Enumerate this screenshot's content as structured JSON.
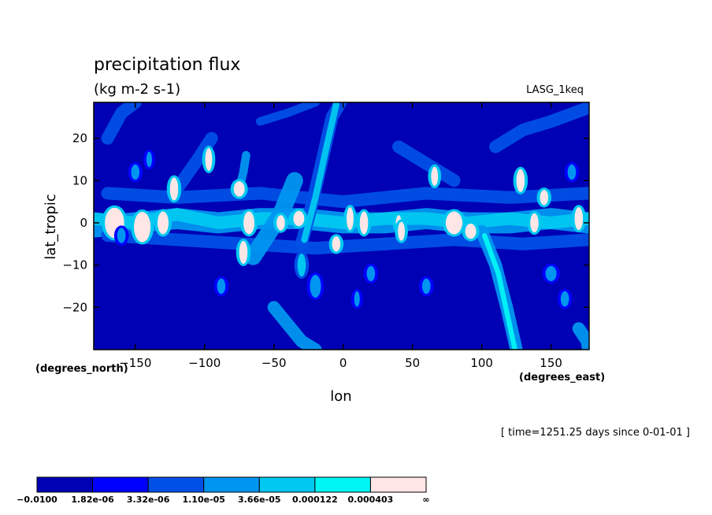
{
  "chart_data": {
    "type": "heatmap",
    "title": "precipitation flux",
    "units": "(kg m-2 s-1)",
    "dataset": "LASG_1keq",
    "xlabel": "lon",
    "ylabel": "lat_tropic",
    "x_units": "(degrees_east)",
    "y_units": "(degrees_north)",
    "time_label": "[ time=1251.25 days since 0-01-01 ]",
    "xlim": [
      -180,
      177.5
    ],
    "ylim": [
      -30,
      28.5
    ],
    "x_ticks": [
      -150,
      -100,
      -50,
      0,
      50,
      100,
      150
    ],
    "y_ticks": [
      -20,
      -10,
      0,
      10,
      20
    ],
    "x_tick_labels": [
      "−150",
      "−100",
      "−50",
      "0",
      "50",
      "100",
      "150"
    ],
    "y_tick_labels": [
      "−20",
      "−10",
      "0",
      "10",
      "20"
    ],
    "levels": [
      "−0.0100",
      "1.82e-06",
      "3.32e-06",
      "1.10e-05",
      "3.66e-05",
      "0.000122",
      "0.000403",
      "∞"
    ],
    "colors": [
      "#0000b4",
      "#0000ff",
      "#0050e6",
      "#0096f0",
      "#00c8f0",
      "#00f5f5",
      "#ffe6e6"
    ],
    "features": [
      {
        "type": "band",
        "pts": [
          [
            -180,
            -1
          ],
          [
            -150,
            0
          ],
          [
            -120,
            1
          ],
          [
            -90,
            0
          ],
          [
            -60,
            1
          ],
          [
            -30,
            1
          ],
          [
            0,
            0
          ],
          [
            30,
            0
          ],
          [
            60,
            1
          ],
          [
            90,
            0
          ],
          [
            120,
            0
          ],
          [
            150,
            1
          ],
          [
            177,
            0
          ]
        ],
        "w": 5,
        "level": 3
      },
      {
        "type": "band",
        "pts": [
          [
            -180,
            1
          ],
          [
            -150,
            0
          ],
          [
            -120,
            2
          ],
          [
            -90,
            0
          ],
          [
            -60,
            1
          ],
          [
            -30,
            1
          ],
          [
            0,
            0
          ],
          [
            30,
            1
          ],
          [
            60,
            1
          ],
          [
            90,
            0
          ],
          [
            120,
            1
          ],
          [
            150,
            0
          ],
          [
            177,
            1
          ]
        ],
        "w": 3,
        "level": 4
      },
      {
        "type": "band",
        "pts": [
          [
            -170,
            -3
          ],
          [
            -120,
            -4
          ],
          [
            -70,
            -5
          ],
          [
            -20,
            -6
          ],
          [
            30,
            -5
          ],
          [
            80,
            -4
          ],
          [
            130,
            -5
          ],
          [
            177,
            -4
          ]
        ],
        "w": 3,
        "level": 2
      },
      {
        "type": "band",
        "pts": [
          [
            -170,
            7
          ],
          [
            -120,
            6
          ],
          [
            -60,
            7
          ],
          [
            0,
            5
          ],
          [
            60,
            7
          ],
          [
            120,
            6
          ],
          [
            177,
            7
          ]
        ],
        "w": 3,
        "level": 2
      },
      {
        "type": "band",
        "pts": [
          [
            -65,
            -8
          ],
          [
            -55,
            -3
          ],
          [
            -45,
            2
          ],
          [
            -40,
            6
          ],
          [
            -35,
            10
          ]
        ],
        "w": 4,
        "level": 3
      },
      {
        "type": "band",
        "pts": [
          [
            -30,
            -5
          ],
          [
            -22,
            5
          ],
          [
            -15,
            15
          ],
          [
            -8,
            25
          ],
          [
            -2,
            28.5
          ]
        ],
        "w": 3,
        "level": 2
      },
      {
        "type": "band",
        "pts": [
          [
            -28,
            -4
          ],
          [
            -20,
            6
          ],
          [
            -12,
            18
          ],
          [
            -5,
            28
          ]
        ],
        "w": 1.5,
        "level": 4
      },
      {
        "type": "band",
        "pts": [
          [
            100,
            -2
          ],
          [
            110,
            -10
          ],
          [
            118,
            -20
          ],
          [
            125,
            -30
          ]
        ],
        "w": 3,
        "level": 3
      },
      {
        "type": "band",
        "pts": [
          [
            102,
            -3
          ],
          [
            112,
            -12
          ],
          [
            120,
            -24
          ],
          [
            124,
            -30
          ]
        ],
        "w": 1.2,
        "level": 5
      },
      {
        "type": "band",
        "pts": [
          [
            -120,
            8
          ],
          [
            -105,
            15
          ],
          [
            -95,
            20
          ]
        ],
        "w": 3,
        "level": 2
      },
      {
        "type": "band",
        "pts": [
          [
            -50,
            -20
          ],
          [
            -40,
            -24
          ],
          [
            -30,
            -28
          ],
          [
            -20,
            -30
          ]
        ],
        "w": 3,
        "level": 3
      },
      {
        "type": "band",
        "pts": [
          [
            110,
            18
          ],
          [
            130,
            22
          ],
          [
            150,
            24
          ],
          [
            175,
            27
          ]
        ],
        "w": 3,
        "level": 2
      },
      {
        "type": "band",
        "pts": [
          [
            -170,
            20
          ],
          [
            -160,
            26
          ],
          [
            -150,
            28.5
          ]
        ],
        "w": 3,
        "level": 2
      },
      {
        "type": "band",
        "pts": [
          [
            -75,
            8
          ],
          [
            -72,
            12
          ],
          [
            -70,
            16
          ]
        ],
        "w": 2,
        "level": 3
      },
      {
        "type": "band",
        "pts": [
          [
            40,
            18
          ],
          [
            60,
            14
          ],
          [
            80,
            10
          ]
        ],
        "w": 3,
        "level": 2
      },
      {
        "type": "band",
        "pts": [
          [
            170,
            -25
          ],
          [
            176,
            -28
          ],
          [
            177,
            -30
          ]
        ],
        "w": 3,
        "level": 3
      },
      {
        "type": "band",
        "pts": [
          [
            -60,
            24
          ],
          [
            -40,
            26
          ],
          [
            -20,
            28.5
          ]
        ],
        "w": 2,
        "level": 2
      },
      {
        "type": "blob",
        "x": -165,
        "y": 0,
        "rx": 7,
        "ry": 4,
        "level": 6
      },
      {
        "type": "blob",
        "x": -145,
        "y": -1,
        "rx": 6,
        "ry": 4,
        "level": 6
      },
      {
        "type": "blob",
        "x": -130,
        "y": 0,
        "rx": 4,
        "ry": 3,
        "level": 6
      },
      {
        "type": "blob",
        "x": -122,
        "y": 8,
        "rx": 3,
        "ry": 3,
        "level": 6
      },
      {
        "type": "blob",
        "x": -97,
        "y": 15,
        "rx": 2.5,
        "ry": 3,
        "level": 6
      },
      {
        "type": "blob",
        "x": -75,
        "y": 8,
        "rx": 4,
        "ry": 2,
        "level": 6
      },
      {
        "type": "blob",
        "x": -68,
        "y": 0,
        "rx": 4,
        "ry": 3,
        "level": 6
      },
      {
        "type": "blob",
        "x": -72,
        "y": -7,
        "rx": 3,
        "ry": 3,
        "level": 6
      },
      {
        "type": "blob",
        "x": -45,
        "y": 0,
        "rx": 3,
        "ry": 2,
        "level": 6
      },
      {
        "type": "blob",
        "x": -32,
        "y": 1,
        "rx": 4,
        "ry": 2,
        "level": 6
      },
      {
        "type": "blob",
        "x": -5,
        "y": -5,
        "rx": 3,
        "ry": 2,
        "level": 6
      },
      {
        "type": "blob",
        "x": 5,
        "y": 1,
        "rx": 2.5,
        "ry": 3,
        "level": 6
      },
      {
        "type": "blob",
        "x": 15,
        "y": 0,
        "rx": 3,
        "ry": 3,
        "level": 6
      },
      {
        "type": "blob",
        "x": 40,
        "y": 0,
        "rx": 2,
        "ry": 2,
        "level": 6
      },
      {
        "type": "blob",
        "x": 42,
        "y": -2,
        "rx": 2.5,
        "ry": 2.5,
        "level": 6
      },
      {
        "type": "blob",
        "x": 66,
        "y": 11,
        "rx": 2.5,
        "ry": 2.5,
        "level": 6
      },
      {
        "type": "blob",
        "x": 80,
        "y": 0,
        "rx": 6,
        "ry": 3,
        "level": 6
      },
      {
        "type": "blob",
        "x": 92,
        "y": -2,
        "rx": 4,
        "ry": 2,
        "level": 6
      },
      {
        "type": "blob",
        "x": 128,
        "y": 10,
        "rx": 3,
        "ry": 3,
        "level": 6
      },
      {
        "type": "blob",
        "x": 138,
        "y": 0,
        "rx": 3,
        "ry": 2.5,
        "level": 6
      },
      {
        "type": "blob",
        "x": 145,
        "y": 6,
        "rx": 3,
        "ry": 2,
        "level": 6
      },
      {
        "type": "blob",
        "x": 170,
        "y": 1,
        "rx": 3,
        "ry": 3,
        "level": 6
      },
      {
        "type": "blob",
        "x": -150,
        "y": 12,
        "rx": 3,
        "ry": 2,
        "level": 3
      },
      {
        "type": "blob",
        "x": -160,
        "y": -3,
        "rx": 3,
        "ry": 2,
        "level": 3
      },
      {
        "type": "blob",
        "x": -140,
        "y": 15,
        "rx": 2,
        "ry": 2,
        "level": 3
      },
      {
        "type": "blob",
        "x": -88,
        "y": -15,
        "rx": 3,
        "ry": 2,
        "level": 3
      },
      {
        "type": "blob",
        "x": -20,
        "y": -15,
        "rx": 4,
        "ry": 3,
        "level": 3
      },
      {
        "type": "blob",
        "x": 20,
        "y": -12,
        "rx": 3,
        "ry": 2,
        "level": 3
      },
      {
        "type": "blob",
        "x": 60,
        "y": -15,
        "rx": 3,
        "ry": 2,
        "level": 3
      },
      {
        "type": "blob",
        "x": 150,
        "y": -12,
        "rx": 4,
        "ry": 2,
        "level": 3
      },
      {
        "type": "blob",
        "x": 160,
        "y": -18,
        "rx": 3,
        "ry": 2,
        "level": 3
      },
      {
        "type": "blob",
        "x": -30,
        "y": -10,
        "rx": 3,
        "ry": 3,
        "level": 4
      },
      {
        "type": "blob",
        "x": 10,
        "y": -18,
        "rx": 2,
        "ry": 2,
        "level": 3
      },
      {
        "type": "blob",
        "x": 165,
        "y": 12,
        "rx": 3,
        "ry": 2,
        "level": 3
      }
    ]
  }
}
